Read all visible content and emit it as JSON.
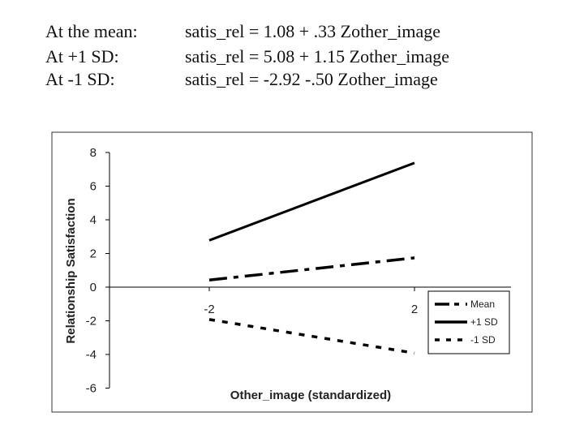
{
  "equations": [
    {
      "label": "At the mean:",
      "text": "satis_rel = 1.08 + .33 Zother_image"
    },
    {
      "label": "At +1 SD:",
      "text": "satis_rel = 5.08 + 1.15 Zother_image"
    },
    {
      "label": "At -1 SD:",
      "text": "satis_rel = -2.92 -.50 Zother_image"
    }
  ],
  "chart_data": {
    "type": "line",
    "title": "",
    "xlabel": "Other_image (standardized)",
    "ylabel": "Relationship Satisfaction",
    "x": [
      -2,
      2
    ],
    "xticks": [
      "-2",
      "2"
    ],
    "ylim": [
      -6,
      8
    ],
    "yticks": [
      "8",
      "6",
      "4",
      "2",
      "0",
      "-2",
      "-4",
      "-6"
    ],
    "legend_position": "bottom-right",
    "series": [
      {
        "name": "Mean",
        "values": [
          0.42,
          1.74
        ],
        "style": "dash-dot"
      },
      {
        "name": "+1 SD",
        "values": [
          2.78,
          7.38
        ],
        "style": "solid"
      },
      {
        "name": "-1 SD",
        "values": [
          -1.92,
          -3.92
        ],
        "style": "dotted"
      }
    ],
    "grid": false
  }
}
